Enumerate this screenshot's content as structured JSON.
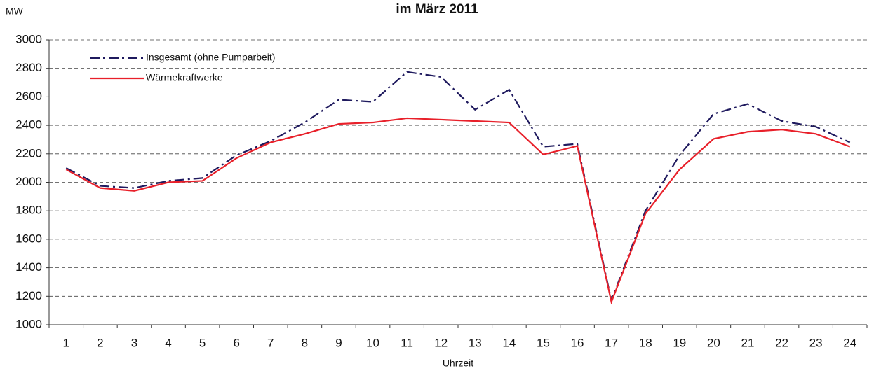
{
  "chart_data": {
    "type": "line",
    "title": "im März 2011",
    "y_unit": "MW",
    "x_label": "Uhrzeit",
    "categories": [
      "1",
      "2",
      "3",
      "4",
      "5",
      "6",
      "7",
      "8",
      "9",
      "10",
      "11",
      "12",
      "13",
      "14",
      "15",
      "16",
      "17",
      "18",
      "19",
      "20",
      "21",
      "22",
      "23",
      "24"
    ],
    "series": [
      {
        "name": "Insgesamt (ohne Pumparbeit)",
        "color": "#1f1a5e",
        "dash": "dashdot",
        "values": [
          2100,
          1975,
          1960,
          2010,
          2030,
          2190,
          2290,
          2420,
          2580,
          2565,
          2775,
          2740,
          2510,
          2650,
          2250,
          2270,
          1170,
          1800,
          2190,
          2480,
          2550,
          2430,
          2390,
          2280
        ]
      },
      {
        "name": "Wärmekraftwerke",
        "color": "#e8202a",
        "dash": "solid",
        "values": [
          2090,
          1960,
          1940,
          2000,
          2010,
          2170,
          2280,
          2340,
          2410,
          2420,
          2450,
          2440,
          2430,
          2420,
          2195,
          2255,
          1160,
          1780,
          2090,
          2305,
          2355,
          2370,
          2340,
          2250
        ]
      }
    ],
    "ylim": [
      1000,
      3000
    ],
    "yticks": [
      1000,
      1200,
      1400,
      1600,
      1800,
      2000,
      2200,
      2400,
      2600,
      2800,
      3000
    ],
    "grid": true,
    "legend": "top-left"
  }
}
